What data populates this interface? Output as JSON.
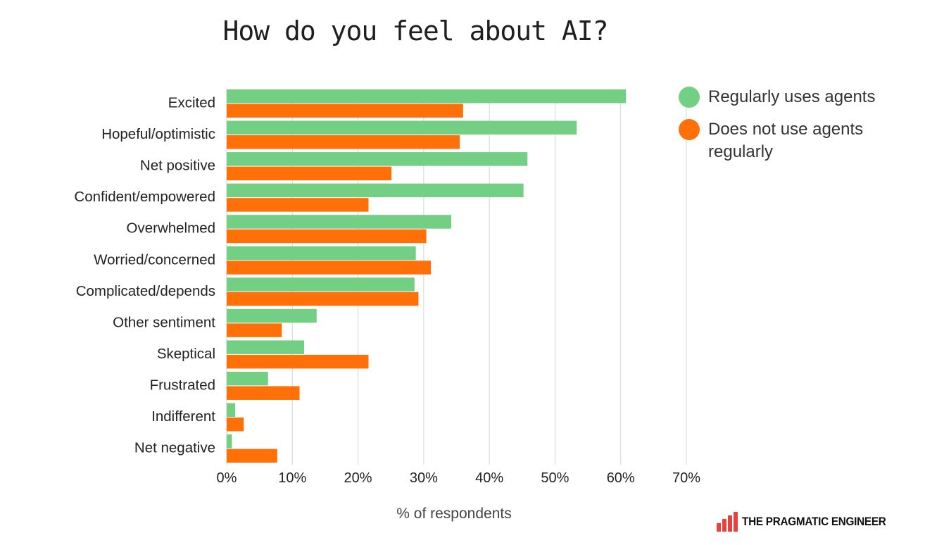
{
  "chart_data": {
    "type": "bar",
    "orientation": "horizontal",
    "title": "How do you feel about AI?",
    "xlabel": "% of respondents",
    "ylabel": "",
    "xlim": [
      0,
      70
    ],
    "xticks": [
      "0%",
      "10%",
      "20%",
      "30%",
      "40%",
      "50%",
      "60%",
      "70%"
    ],
    "grid": true,
    "legend_position": "right",
    "categories": [
      "Excited",
      "Hopeful/optimistic",
      "Net positive",
      "Confident/empowered",
      "Overwhelmed",
      "Worried/concerned",
      "Complicated/depends",
      "Other sentiment",
      "Skeptical",
      "Frustrated",
      "Indifferent",
      "Net negative"
    ],
    "series": [
      {
        "name": "Regularly uses agents",
        "color": "#72cf84",
        "values": [
          60.8,
          53.3,
          45.8,
          45.2,
          34.2,
          28.8,
          28.6,
          13.7,
          11.8,
          6.3,
          1.3,
          0.8
        ]
      },
      {
        "name": "Does not use agents regularly",
        "color": "#ff7008",
        "values": [
          36.0,
          35.5,
          25.1,
          21.6,
          30.4,
          31.1,
          29.2,
          8.4,
          21.6,
          11.1,
          2.6,
          7.7
        ]
      }
    ]
  },
  "legend": {
    "items": [
      {
        "label": "Regularly uses agents",
        "color": "#72cf84"
      },
      {
        "label": "Does not use agents regularly",
        "color": "#ff7008"
      }
    ]
  },
  "brand": {
    "name": "THE PRAGMATIC ENGINEER",
    "color": "#e8423f"
  }
}
